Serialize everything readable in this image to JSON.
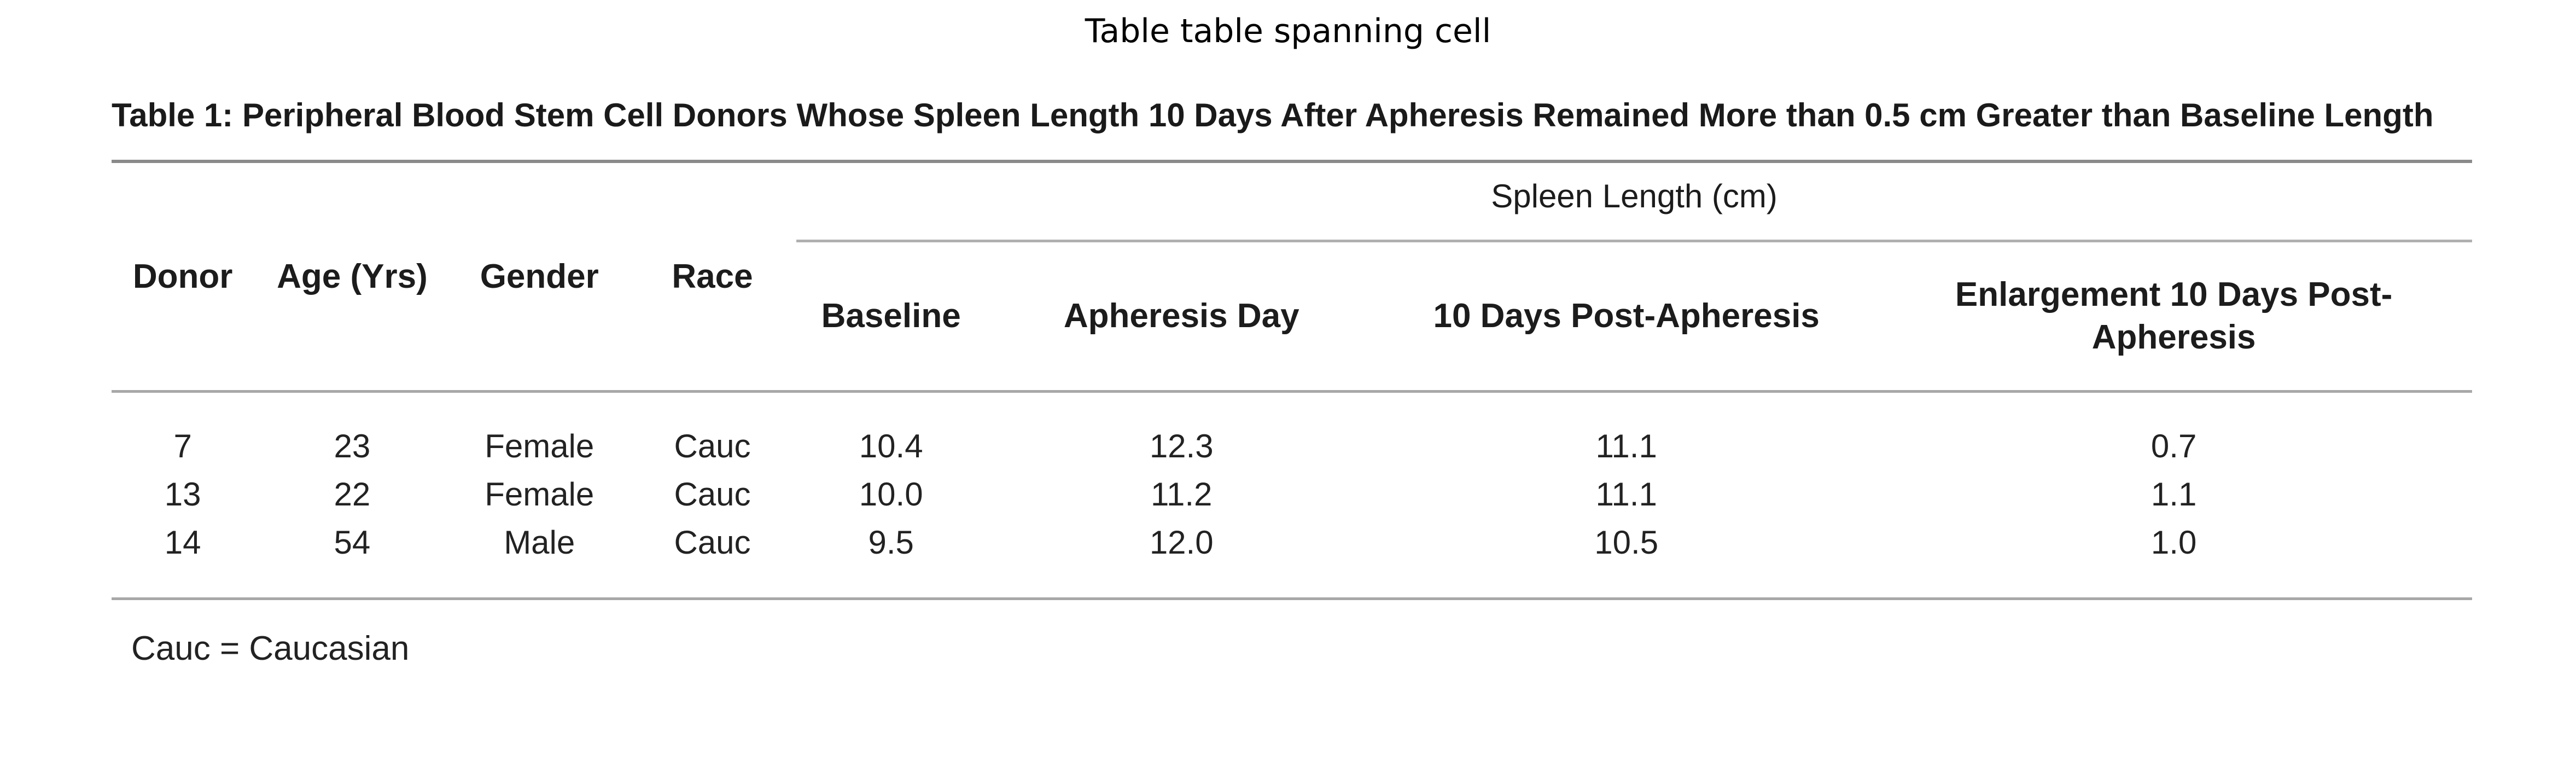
{
  "figure_heading": "Table table spanning cell",
  "table": {
    "caption": "Table 1: Peripheral Blood Stem Cell Donors Whose Spleen Length 10 Days After Apheresis Remained More than 0.5 cm Greater than Baseline Length",
    "spanning_header": "Spleen Length (cm)",
    "columns": [
      "Donor",
      "Age (Yrs)",
      "Gender",
      "Race",
      "Baseline",
      "Apheresis Day",
      "10 Days Post-Apheresis",
      "Enlargement 10 Days Post-Apheresis"
    ],
    "rows": [
      [
        "7",
        "23",
        "Female",
        "Cauc",
        "10.4",
        "12.3",
        "11.1",
        "0.7"
      ],
      [
        "13",
        "22",
        "Female",
        "Cauc",
        "10.0",
        "11.2",
        "11.1",
        "1.1"
      ],
      [
        "14",
        "54",
        "Male",
        "Cauc",
        "9.5",
        "12.0",
        "10.5",
        "1.0"
      ]
    ],
    "footnote": "Cauc = Caucasian"
  }
}
